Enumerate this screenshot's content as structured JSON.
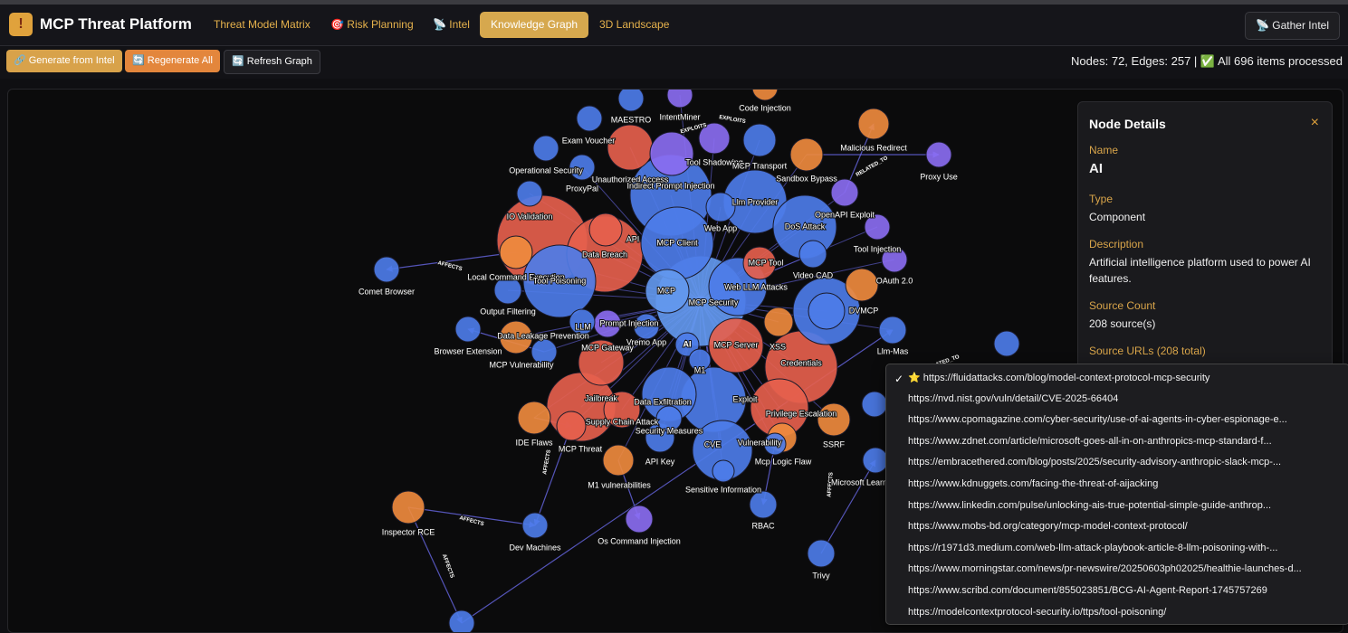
{
  "header": {
    "title": "MCP Threat Platform",
    "tabs": [
      "Threat Model Matrix",
      "🎯 Risk Planning",
      "📡 Intel",
      "Knowledge Graph",
      "3D Landscape"
    ],
    "gather_button": "📡 Gather Intel"
  },
  "toolbar": {
    "buttons": [
      "🔗 Generate from Intel",
      "🔄 Regenerate All",
      "🔄 Refresh Graph"
    ],
    "status": "Nodes: 72, Edges: 257 | ✅ All 696 items processed"
  },
  "graph": {
    "nodes": [
      "MAESTRO",
      "IntentMiner",
      "Code Injection",
      "Exam Voucher",
      "Operational Security",
      "ProxyPal",
      "Unauthorized Access",
      "Tool Shadowing",
      "MCP Transport",
      "Malicious Redirect",
      "Proxy Use",
      "Sandbox Bypass",
      "Indirect Prompt Injection",
      "IO Validation",
      "Llm Provider",
      "OpenAPI Exploit",
      "Web App",
      "DoS Attack",
      "API",
      "MCP Client",
      "Tool Injection",
      "Comet Browser",
      "Local Command Execution",
      "Data Breach",
      "Tool Poisoning",
      "MCP Tool",
      "Video CAD",
      "OAuth 2.0",
      "MCP",
      "Web LLM Attacks",
      "MCP Security",
      "DVMCP",
      "Output Filtering",
      "LLM",
      "Prompt Injection",
      "Llm-Mas",
      "Browser Extension",
      "Data Leakage Prevention",
      "Vremo App",
      "AI",
      "MCP Server",
      "XSS",
      "MCP Gateway",
      "MCP Vulnerability",
      "Credentials",
      "M1",
      "Jailbreak",
      "Data Exfiltration",
      "Exploit",
      "Supply Chain Attack",
      "Security Measures",
      "Privilege Escalation",
      "SSRF",
      "IDE Flaws",
      "MCP Threat",
      "CVE",
      "Vulnerability",
      "API Key",
      "Mcp Logic Flaw",
      "M1 vulnerabilities",
      "Microsoft Learn",
      "Sensitive Information",
      "RBAC",
      "Inspector RCE",
      "Dev Machines",
      "Os Command Injection",
      "Trivy"
    ],
    "edge_labels": [
      "AFFECTS",
      "AFFECTS",
      "AFFECTS",
      "EXPLOITS",
      "EXPLOITS",
      "RELATED_TO",
      "AFFECTS",
      "AFFECTS",
      "RELATED_TO"
    ]
  },
  "node_details": {
    "title": "Node Details",
    "close": "×",
    "fields": [
      {
        "label": "Name",
        "value": "AI"
      },
      {
        "label": "Type",
        "value": "Component"
      },
      {
        "label": "Description",
        "value": "Artificial intelligence platform used to power AI features."
      },
      {
        "label": "Source Count",
        "value": "208 source(s)"
      }
    ],
    "urls_label": "Source URLs (208 total)"
  },
  "source_menu": {
    "check": "✓",
    "items": [
      "⭐ https://fluidattacks.com/blog/model-context-protocol-mcp-security",
      "https://nvd.nist.gov/vuln/detail/CVE-2025-66404",
      "https://www.cpomagazine.com/cyber-security/use-of-ai-agents-in-cyber-espionage-e...",
      "https://www.zdnet.com/article/microsoft-goes-all-in-on-anthropics-mcp-standard-f...",
      "https://embracethered.com/blog/posts/2025/security-advisory-anthropic-slack-mcp-...",
      "https://www.kdnuggets.com/facing-the-threat-of-aijacking",
      "https://www.linkedin.com/pulse/unlocking-ais-true-potential-simple-guide-anthrop...",
      "https://www.mobs-bd.org/category/mcp-model-context-protocol/",
      "https://r1971d3.medium.com/web-llm-attack-playbook-article-8-llm-poisoning-with-...",
      "https://www.morningstar.com/news/pr-newswire/20250603ph02025/healthie-launches-d...",
      "https://www.scribd.com/document/855023851/BCG-AI-Agent-Report-1745757269",
      "https://modelcontextprotocol-security.io/ttps/tool-poisoning/"
    ]
  }
}
